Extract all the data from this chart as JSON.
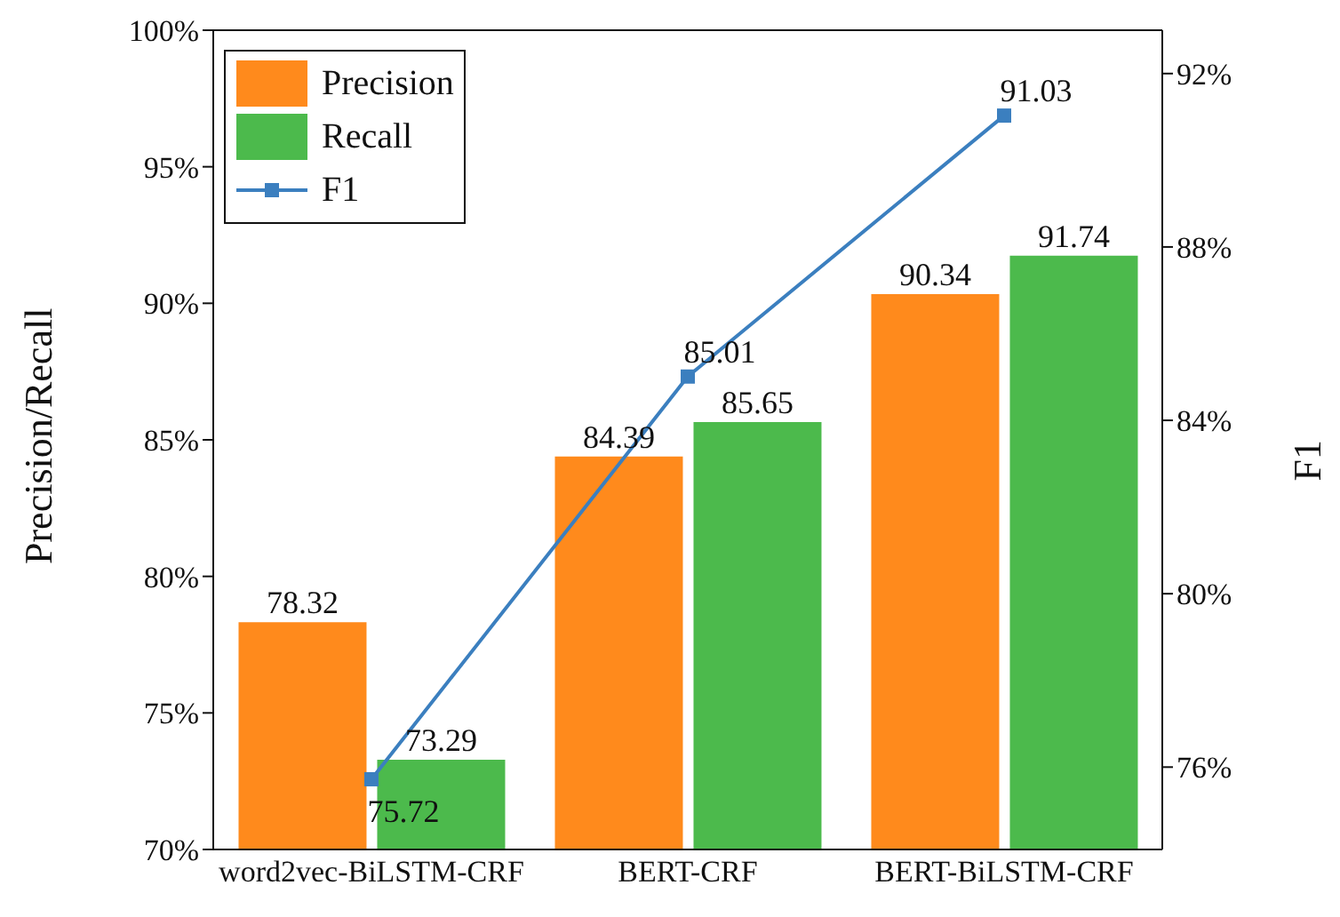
{
  "chart_data": {
    "type": "bar",
    "categories": [
      "word2vec-BiLSTM-CRF",
      "BERT-CRF",
      "BERT-BiLSTM-CRF"
    ],
    "series": [
      {
        "name": "Precision",
        "color": "#ff8a1c",
        "values": [
          78.32,
          84.39,
          90.34
        ]
      },
      {
        "name": "Recall",
        "color": "#4cba4c",
        "values": [
          73.29,
          85.65,
          91.74
        ]
      },
      {
        "name": "F1",
        "type": "line",
        "axis": "y2",
        "color": "#3b7fbf",
        "values": [
          75.72,
          85.01,
          91.03
        ]
      }
    ],
    "ylabel": "Precision/Recall",
    "y2label": "F1",
    "ylim": [
      70,
      100
    ],
    "yticks": [
      {
        "value": 70,
        "label": "70%"
      },
      {
        "value": 75,
        "label": "75%"
      },
      {
        "value": 80,
        "label": "80%"
      },
      {
        "value": 85,
        "label": "85%"
      },
      {
        "value": 90,
        "label": "90%"
      },
      {
        "value": 95,
        "label": "95%"
      },
      {
        "value": 100,
        "label": "100%"
      }
    ],
    "y2lim": [
      74.1,
      93
    ],
    "y2ticks": [
      {
        "value": 76,
        "label": "76%"
      },
      {
        "value": 80,
        "label": "80%"
      },
      {
        "value": 84,
        "label": "84%"
      },
      {
        "value": 88,
        "label": "88%"
      },
      {
        "value": 92,
        "label": "92%"
      }
    ],
    "data_labels": true,
    "legend": "top left",
    "grid": false,
    "marker": "square",
    "line_style": "solid"
  }
}
